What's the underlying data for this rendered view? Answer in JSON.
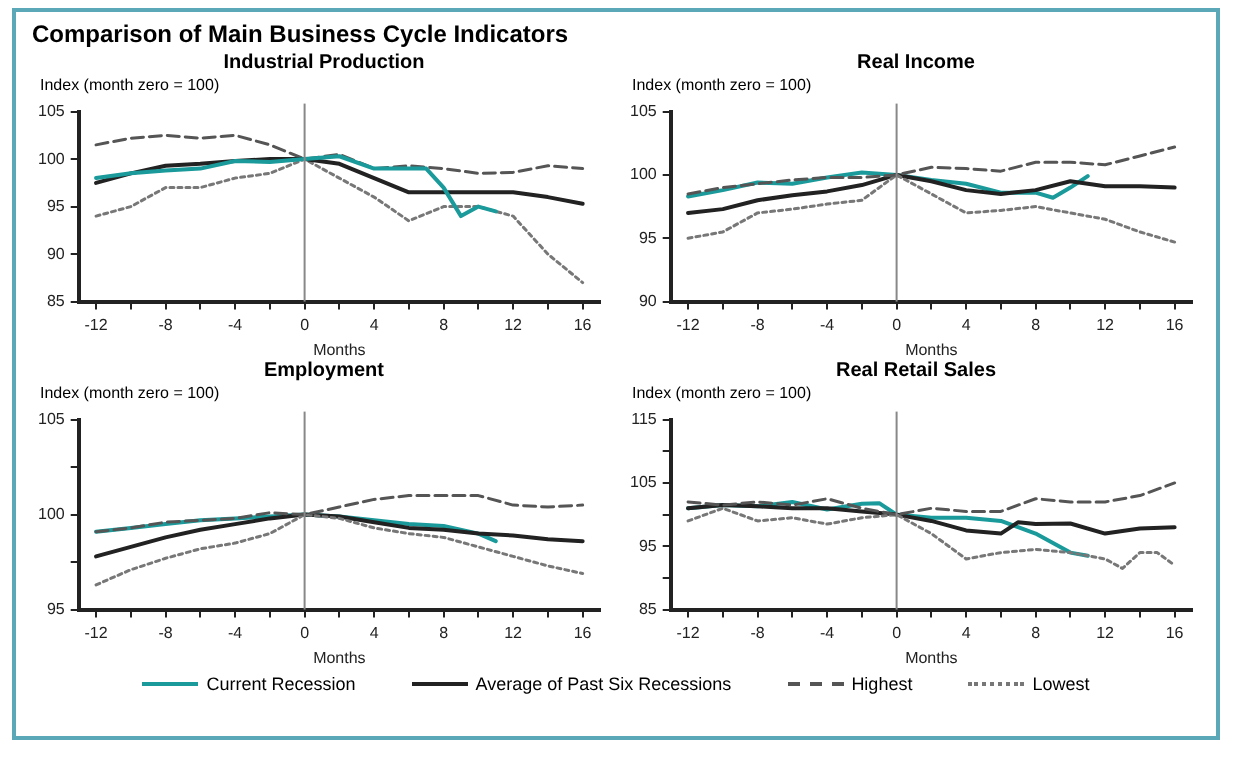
{
  "chart_data": [
    {
      "type": "line",
      "title": "Comparison of Main Business Cycle Indicators",
      "subtitle": "Industrial Production",
      "ylabel": "Index (month zero = 100)",
      "xlabel": "Months",
      "marker": "none",
      "legend": "bottom",
      "xlim": [
        -13,
        17
      ],
      "xticks": [
        {
          "value": -12,
          "label": "-12"
        },
        {
          "value": -10,
          "label": null
        },
        {
          "value": -8,
          "label": "-8"
        },
        {
          "value": -6,
          "label": null
        },
        {
          "value": -4,
          "label": "-4"
        },
        {
          "value": -2,
          "label": null
        },
        0,
        {
          "value": 2,
          "label": null
        },
        4,
        {
          "value": 6,
          "label": null
        },
        8,
        {
          "value": 10,
          "label": null
        },
        12,
        {
          "value": 14,
          "label": null
        },
        16
      ],
      "ylim": [
        85,
        105
      ],
      "yticks": [
        85,
        90,
        95,
        100,
        105
      ],
      "ref_lines": [
        {
          "axis": "x",
          "value": 0,
          "color": "#888888"
        }
      ],
      "series": [
        {
          "name": "Current Recession",
          "color": "#1a9a9a",
          "line_style": "solid",
          "x": [
            -12,
            -10,
            -8,
            -6,
            -4,
            -2,
            0,
            2,
            4,
            6,
            7,
            8,
            9,
            10,
            11
          ],
          "values": [
            98,
            98.5,
            98.8,
            99,
            99.8,
            99.7,
            100,
            100.3,
            99,
            99,
            99,
            97,
            94,
            95,
            94.5
          ]
        },
        {
          "name": "Average of Past Six Recessions",
          "color": "#222222",
          "line_style": "solid",
          "x": [
            -12,
            -10,
            -8,
            -6,
            -4,
            -2,
            0,
            2,
            4,
            6,
            8,
            10,
            12,
            14,
            16
          ],
          "values": [
            97.5,
            98.5,
            99.3,
            99.5,
            99.8,
            100,
            100,
            99.5,
            98,
            96.5,
            96.5,
            96.5,
            96.5,
            96,
            95.3
          ]
        },
        {
          "name": "Highest",
          "color": "#555555",
          "line_style": "dashed",
          "x": [
            -12,
            -10,
            -8,
            -6,
            -4,
            -2,
            0,
            2,
            4,
            6,
            8,
            10,
            12,
            14,
            16
          ],
          "values": [
            101.5,
            102.2,
            102.5,
            102.2,
            102.5,
            101.5,
            100,
            100.5,
            99,
            99.3,
            99,
            98.5,
            98.6,
            99.3,
            99
          ]
        },
        {
          "name": "Lowest",
          "color": "#777777",
          "line_style": "dotted",
          "x": [
            -12,
            -10,
            -8,
            -6,
            -4,
            -2,
            0,
            2,
            4,
            6,
            8,
            10,
            12,
            14,
            16
          ],
          "values": [
            94,
            95,
            97,
            97,
            98,
            98.5,
            100,
            98,
            96,
            93.5,
            95,
            95,
            94,
            90,
            87
          ]
        }
      ]
    },
    {
      "type": "line",
      "title": "Real Income",
      "ylabel": "Index (month zero = 100)",
      "xlabel": "Months",
      "marker": "none",
      "xlim": [
        -13,
        17
      ],
      "xticks": [
        {
          "value": -12,
          "label": "-12"
        },
        {
          "value": -10,
          "label": null
        },
        {
          "value": -8,
          "label": "-8"
        },
        {
          "value": -6,
          "label": null
        },
        {
          "value": -4,
          "label": "-4"
        },
        {
          "value": -2,
          "label": null
        },
        0,
        {
          "value": 2,
          "label": null
        },
        4,
        {
          "value": 6,
          "label": null
        },
        8,
        {
          "value": 10,
          "label": null
        },
        12,
        {
          "value": 14,
          "label": null
        },
        16
      ],
      "ylim": [
        90,
        105
      ],
      "yticks": [
        90,
        95,
        100,
        105
      ],
      "ref_lines": [
        {
          "axis": "x",
          "value": 0,
          "color": "#888888"
        }
      ],
      "series": [
        {
          "color": "#555555",
          "line_style": "dashed",
          "x": [
            -12,
            -10,
            -8,
            -6,
            -4,
            -2,
            0,
            2,
            4,
            6,
            8,
            10,
            12,
            14,
            16
          ],
          "values": [
            98.5,
            99,
            99.3,
            99.6,
            99.8,
            99.8,
            100,
            100.6,
            100.5,
            100.3,
            101,
            101,
            100.8,
            101.5,
            102.2
          ]
        },
        {
          "color": "#777777",
          "line_style": "dotted",
          "x": [
            -12,
            -10,
            -8,
            -6,
            -4,
            -2,
            0,
            2,
            4,
            6,
            8,
            10,
            12,
            14,
            16
          ],
          "values": [
            95,
            95.5,
            97,
            97.3,
            97.7,
            98,
            100,
            98.5,
            97,
            97.2,
            97.5,
            97,
            96.5,
            95.5,
            94.7
          ]
        },
        {
          "color": "#222222",
          "line_style": "solid",
          "x": [
            -12,
            -10,
            -8,
            -6,
            -4,
            -2,
            0,
            2,
            4,
            6,
            8,
            10,
            12,
            14,
            16
          ],
          "values": [
            97,
            97.3,
            98,
            98.4,
            98.7,
            99.2,
            100,
            99.5,
            98.8,
            98.5,
            98.8,
            99.5,
            99.1,
            99.1,
            99
          ]
        },
        {
          "color": "#1a9a9a",
          "line_style": "solid",
          "x": [
            -12,
            -10,
            -8,
            -6,
            -4,
            -2,
            0,
            2,
            4,
            6,
            8,
            9,
            10,
            11
          ],
          "values": [
            98.3,
            98.8,
            99.4,
            99.3,
            99.8,
            100.2,
            100,
            99.6,
            99.3,
            98.6,
            98.6,
            98.2,
            99,
            99.9
          ]
        }
      ]
    },
    {
      "type": "line",
      "title": "Employment",
      "ylabel": "Index (month zero = 100)",
      "xlabel": "Months",
      "marker": "none",
      "xlim": [
        -13,
        17
      ],
      "xticks": [
        {
          "value": -12,
          "label": "-12"
        },
        {
          "value": -10,
          "label": null
        },
        {
          "value": -8,
          "label": "-8"
        },
        {
          "value": -6,
          "label": null
        },
        {
          "value": -4,
          "label": "-4"
        },
        {
          "value": -2,
          "label": null
        },
        0,
        {
          "value": 2,
          "label": null
        },
        4,
        {
          "value": 6,
          "label": null
        },
        8,
        {
          "value": 10,
          "label": null
        },
        12,
        {
          "value": 14,
          "label": null
        },
        16
      ],
      "ylim": [
        95,
        105
      ],
      "yticks": [
        95,
        {
          "value": 97.5,
          "label": null
        },
        100,
        {
          "value": 102.5,
          "label": null
        },
        105
      ],
      "ref_lines": [
        {
          "axis": "x",
          "value": 0,
          "color": "#888888"
        }
      ],
      "series": [
        {
          "color": "#555555",
          "line_style": "dashed",
          "x": [
            -12,
            -10,
            -8,
            -6,
            -4,
            -2,
            0,
            2,
            4,
            6,
            8,
            10,
            12,
            14,
            16
          ],
          "values": [
            99.1,
            99.3,
            99.6,
            99.7,
            99.8,
            100.1,
            100,
            100.4,
            100.8,
            101,
            101,
            101,
            100.5,
            100.4,
            100.5
          ]
        },
        {
          "color": "#777777",
          "line_style": "dotted",
          "x": [
            -12,
            -10,
            -8,
            -6,
            -4,
            -2,
            0,
            2,
            4,
            6,
            8,
            10,
            12,
            14,
            16
          ],
          "values": [
            96.3,
            97.1,
            97.7,
            98.2,
            98.5,
            99,
            100,
            99.8,
            99.3,
            99,
            98.8,
            98.3,
            97.8,
            97.3,
            96.9
          ]
        },
        {
          "color": "#222222",
          "line_style": "solid",
          "x": [
            -12,
            -10,
            -8,
            -6,
            -4,
            -2,
            0,
            2,
            4,
            6,
            8,
            10,
            12,
            14,
            16
          ],
          "values": [
            97.8,
            98.3,
            98.8,
            99.2,
            99.5,
            99.8,
            100,
            99.9,
            99.6,
            99.3,
            99.2,
            99,
            98.9,
            98.7,
            98.6
          ]
        },
        {
          "color": "#1a9a9a",
          "line_style": "solid",
          "x": [
            -12,
            -10,
            -8,
            -6,
            -4,
            -2,
            0,
            2,
            4,
            6,
            8,
            10,
            11
          ],
          "values": [
            99.1,
            99.3,
            99.5,
            99.7,
            99.8,
            99.9,
            100,
            99.9,
            99.7,
            99.5,
            99.4,
            99,
            98.6
          ]
        }
      ]
    },
    {
      "type": "line",
      "title": "Real Retail Sales",
      "ylabel": "Index (month zero = 100)",
      "xlabel": "Months",
      "marker": "none",
      "xlim": [
        -13,
        17
      ],
      "xticks": [
        {
          "value": -12,
          "label": "-12"
        },
        {
          "value": -10,
          "label": null
        },
        {
          "value": -8,
          "label": "-8"
        },
        {
          "value": -6,
          "label": null
        },
        {
          "value": -4,
          "label": "-4"
        },
        {
          "value": -2,
          "label": null
        },
        0,
        {
          "value": 2,
          "label": null
        },
        4,
        {
          "value": 6,
          "label": null
        },
        8,
        {
          "value": 10,
          "label": null
        },
        12,
        {
          "value": 14,
          "label": null
        },
        16
      ],
      "ylim": [
        85,
        115
      ],
      "yticks": [
        85,
        {
          "value": 90,
          "label": null
        },
        95,
        {
          "value": 100,
          "label": null
        },
        105,
        {
          "value": 110,
          "label": null
        },
        115
      ],
      "ref_lines": [
        {
          "axis": "x",
          "value": 0,
          "color": "#888888"
        }
      ],
      "series": [
        {
          "color": "#555555",
          "line_style": "dashed",
          "x": [
            -12,
            -10,
            -8,
            -6,
            -4,
            -2,
            0,
            2,
            4,
            6,
            8,
            10,
            12,
            14,
            16
          ],
          "values": [
            102,
            101.5,
            102,
            101.5,
            102.5,
            101,
            100,
            101,
            100.5,
            100.5,
            102.5,
            102,
            102,
            103,
            105
          ]
        },
        {
          "color": "#777777",
          "line_style": "dotted",
          "x": [
            -12,
            -10,
            -8,
            -6,
            -4,
            -2,
            0,
            2,
            4,
            6,
            8,
            10,
            12,
            13,
            14,
            15,
            16
          ],
          "values": [
            99,
            101,
            99,
            99.5,
            98.5,
            99.5,
            100,
            97,
            93,
            94,
            94.5,
            94,
            93,
            91.5,
            94,
            94,
            92
          ]
        },
        {
          "color": "#222222",
          "line_style": "solid",
          "x": [
            -12,
            -10,
            -8,
            -6,
            -4,
            -2,
            0,
            2,
            4,
            6,
            7,
            8,
            10,
            12,
            14,
            16
          ],
          "values": [
            101,
            101.5,
            101.3,
            101,
            101,
            100.5,
            100,
            99,
            97.5,
            97,
            98.8,
            98.5,
            98.6,
            97,
            97.8,
            98
          ]
        },
        {
          "color": "#1a9a9a",
          "line_style": "solid",
          "x": [
            -12,
            -10,
            -8,
            -6,
            -4,
            -2,
            -1,
            0,
            2,
            4,
            6,
            8,
            10,
            11
          ],
          "values": [
            101,
            101.5,
            101.3,
            102,
            100.8,
            101.7,
            101.8,
            100,
            99.5,
            99.5,
            99,
            97,
            94,
            93.5
          ]
        }
      ]
    }
  ]
}
